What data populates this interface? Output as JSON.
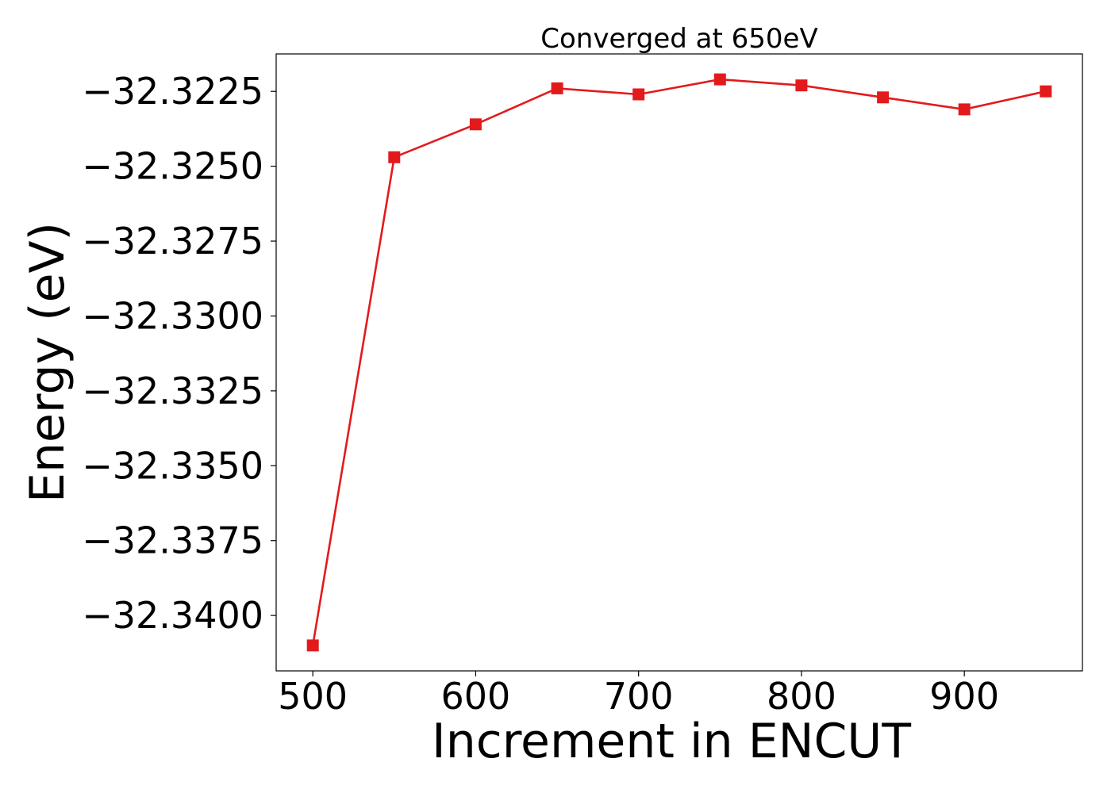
{
  "chart_data": {
    "type": "line",
    "title": "Converged at 650eV",
    "xlabel": "Increment in ENCUT",
    "ylabel": "Energy (eV)",
    "x": [
      500,
      550,
      600,
      650,
      700,
      750,
      800,
      850,
      900,
      950
    ],
    "series": [
      {
        "values": [
          -32.341,
          -32.3247,
          -32.3236,
          -32.3224,
          -32.3226,
          -32.3221,
          -32.3223,
          -32.3227,
          -32.3231,
          -32.3225
        ],
        "color": "#e31a1c",
        "marker": "square"
      }
    ],
    "xlim": [
      477.5,
      972.5
    ],
    "ylim": [
      -32.34185,
      -32.32125
    ],
    "xticks": [
      500,
      600,
      700,
      800,
      900
    ],
    "xtick_labels": [
      "500",
      "600",
      "700",
      "800",
      "900"
    ],
    "yticks": [
      -32.3225,
      -32.325,
      -32.3275,
      -32.33,
      -32.3325,
      -32.335,
      -32.3375,
      -32.34
    ],
    "ytick_labels": [
      "−32.3225",
      "−32.3250",
      "−32.3275",
      "−32.3300",
      "−32.3325",
      "−32.3350",
      "−32.3375",
      "−32.3400"
    ],
    "grid": false,
    "legend": "none"
  }
}
